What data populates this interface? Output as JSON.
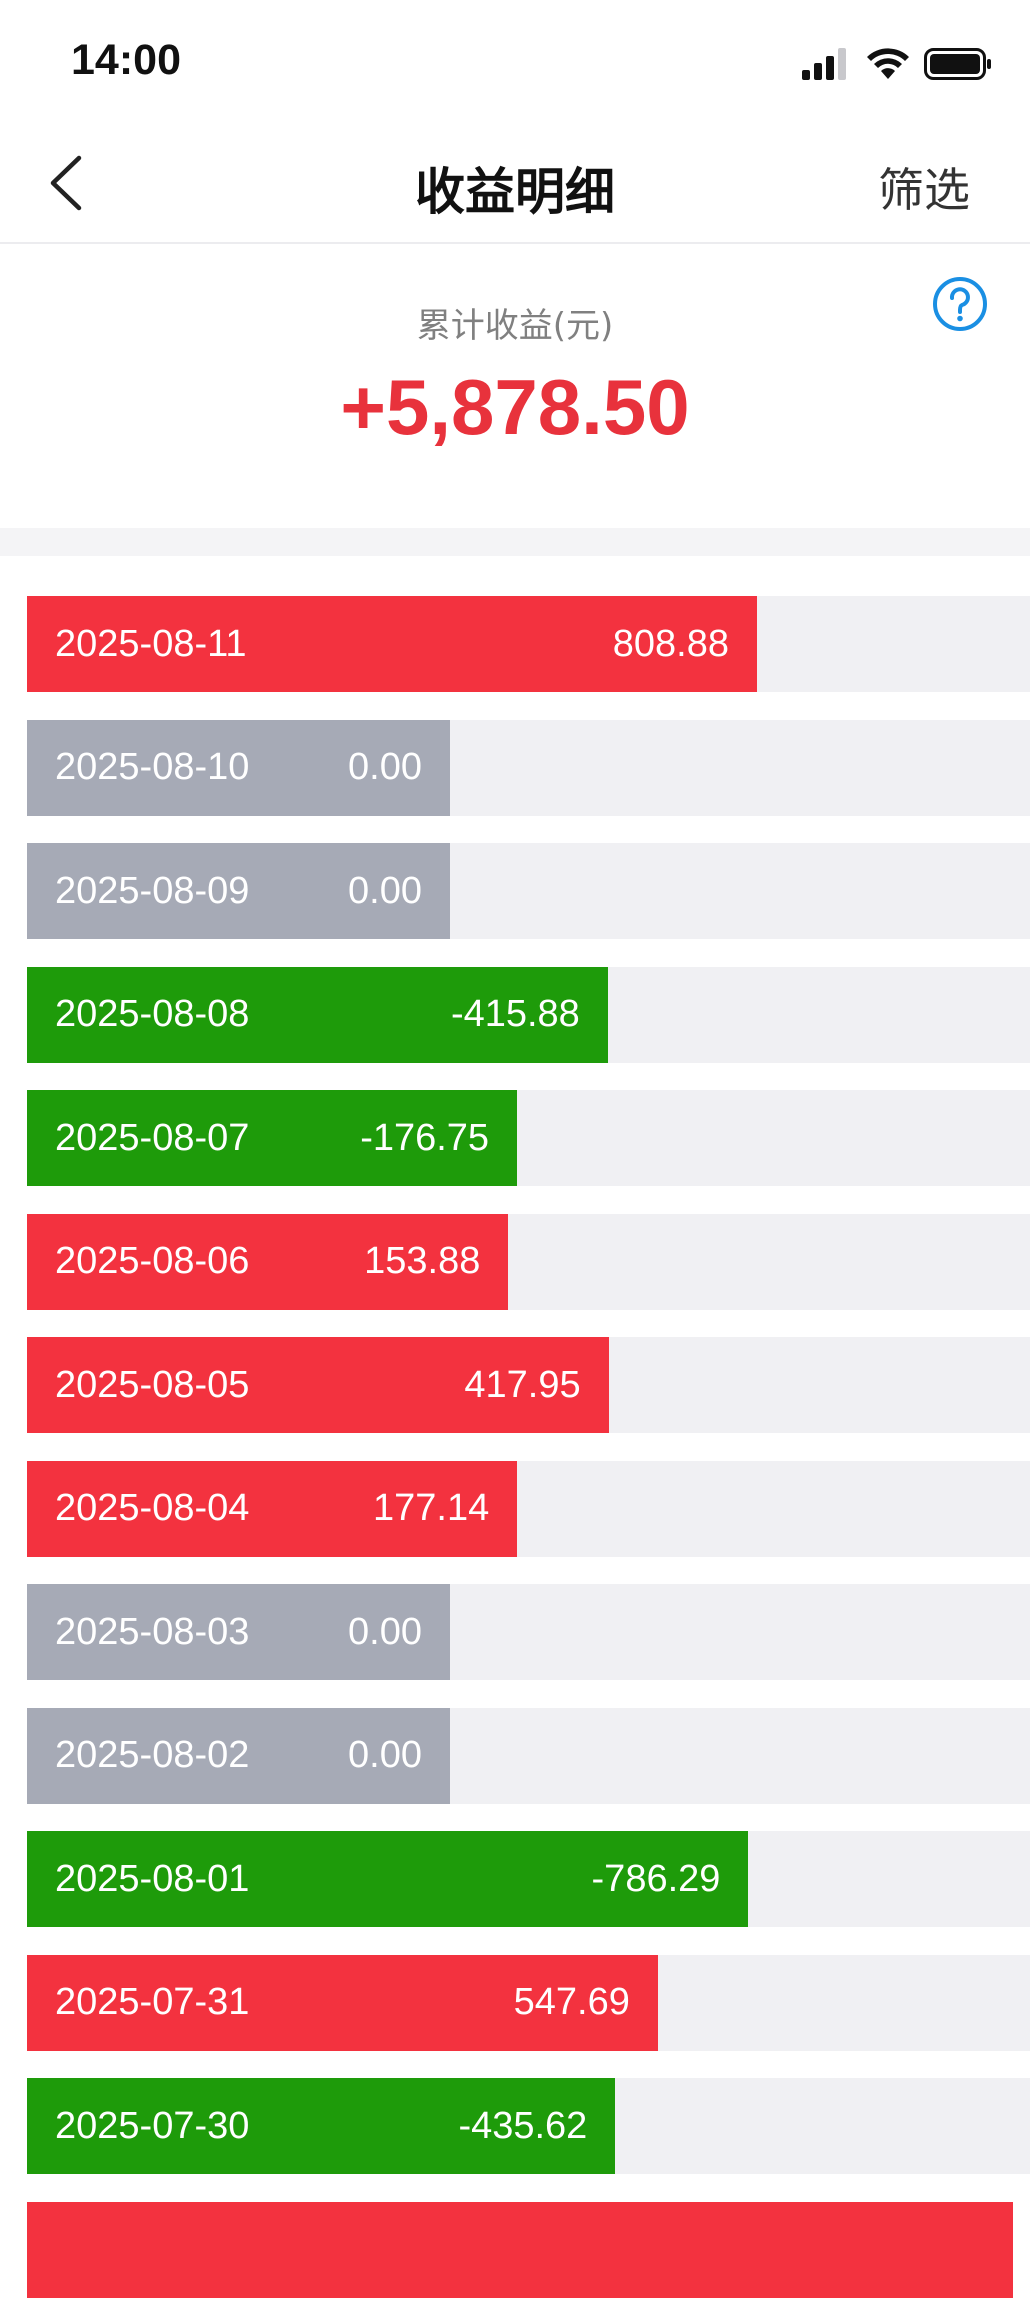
{
  "status": {
    "time": "14:00"
  },
  "nav": {
    "title": "收益明细",
    "filter_label": "筛选"
  },
  "summary": {
    "label": "累计收益(元)",
    "value": "+5,878.50"
  },
  "colors": {
    "positive": "#f3323f",
    "negative": "#1e9b0a",
    "zero": "#a6aab6",
    "accent": "#1a8fe3"
  },
  "records": [
    {
      "date": "2025-08-11",
      "amount": "808.88",
      "sign": "pos"
    },
    {
      "date": "2025-08-10",
      "amount": "0.00",
      "sign": "zero"
    },
    {
      "date": "2025-08-09",
      "amount": "0.00",
      "sign": "zero"
    },
    {
      "date": "2025-08-08",
      "amount": "-415.88",
      "sign": "neg"
    },
    {
      "date": "2025-08-07",
      "amount": "-176.75",
      "sign": "neg"
    },
    {
      "date": "2025-08-06",
      "amount": "153.88",
      "sign": "pos"
    },
    {
      "date": "2025-08-05",
      "amount": "417.95",
      "sign": "pos"
    },
    {
      "date": "2025-08-04",
      "amount": "177.14",
      "sign": "pos"
    },
    {
      "date": "2025-08-03",
      "amount": "0.00",
      "sign": "zero"
    },
    {
      "date": "2025-08-02",
      "amount": "0.00",
      "sign": "zero"
    },
    {
      "date": "2025-08-01",
      "amount": "-786.29",
      "sign": "neg"
    },
    {
      "date": "2025-07-31",
      "amount": "547.69",
      "sign": "pos"
    },
    {
      "date": "2025-07-30",
      "amount": "-435.62",
      "sign": "neg"
    }
  ]
}
